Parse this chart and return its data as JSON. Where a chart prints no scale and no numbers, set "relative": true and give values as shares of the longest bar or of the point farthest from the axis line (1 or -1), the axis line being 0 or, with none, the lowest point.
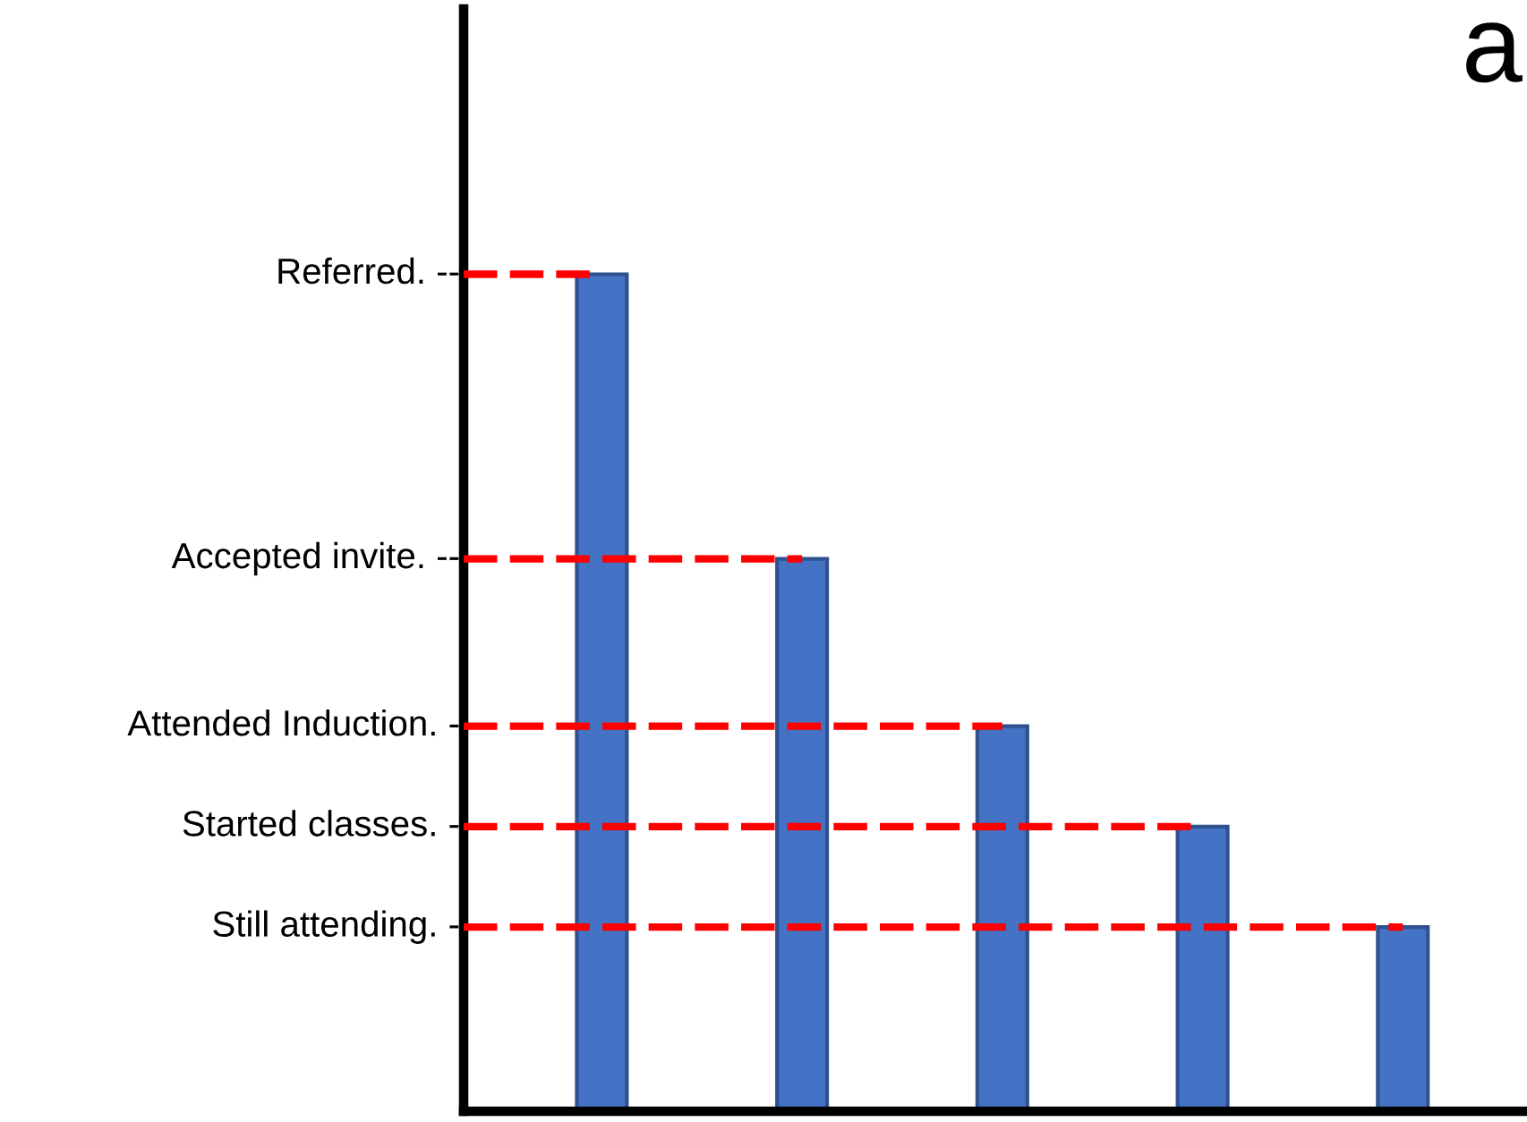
{
  "chart_data": {
    "type": "bar",
    "title": "a",
    "categories": [
      null,
      null,
      null,
      null,
      null
    ],
    "values": [
      1,
      0.66,
      0.46,
      0.34,
      0.22
    ],
    "relative": true,
    "color": "#4472c4",
    "ref_lines": [
      {
        "axis": "y",
        "value": 1,
        "label": "Referred. --",
        "color": "#ff0000",
        "line_style": "dashed"
      },
      {
        "axis": "y",
        "value": 0.66,
        "label": "Accepted invite. --",
        "color": "#ff0000",
        "line_style": "dashed"
      },
      {
        "axis": "y",
        "value": 0.46,
        "label": "Attended Induction. -",
        "color": "#ff0000",
        "line_style": "dashed"
      },
      {
        "axis": "y",
        "value": 0.34,
        "label": "Started classes. -",
        "color": "#ff0000",
        "line_style": "dashed"
      },
      {
        "axis": "y",
        "value": 0.22,
        "label": "Still attending. -",
        "color": "#ff0000",
        "line_style": "dashed"
      }
    ]
  }
}
